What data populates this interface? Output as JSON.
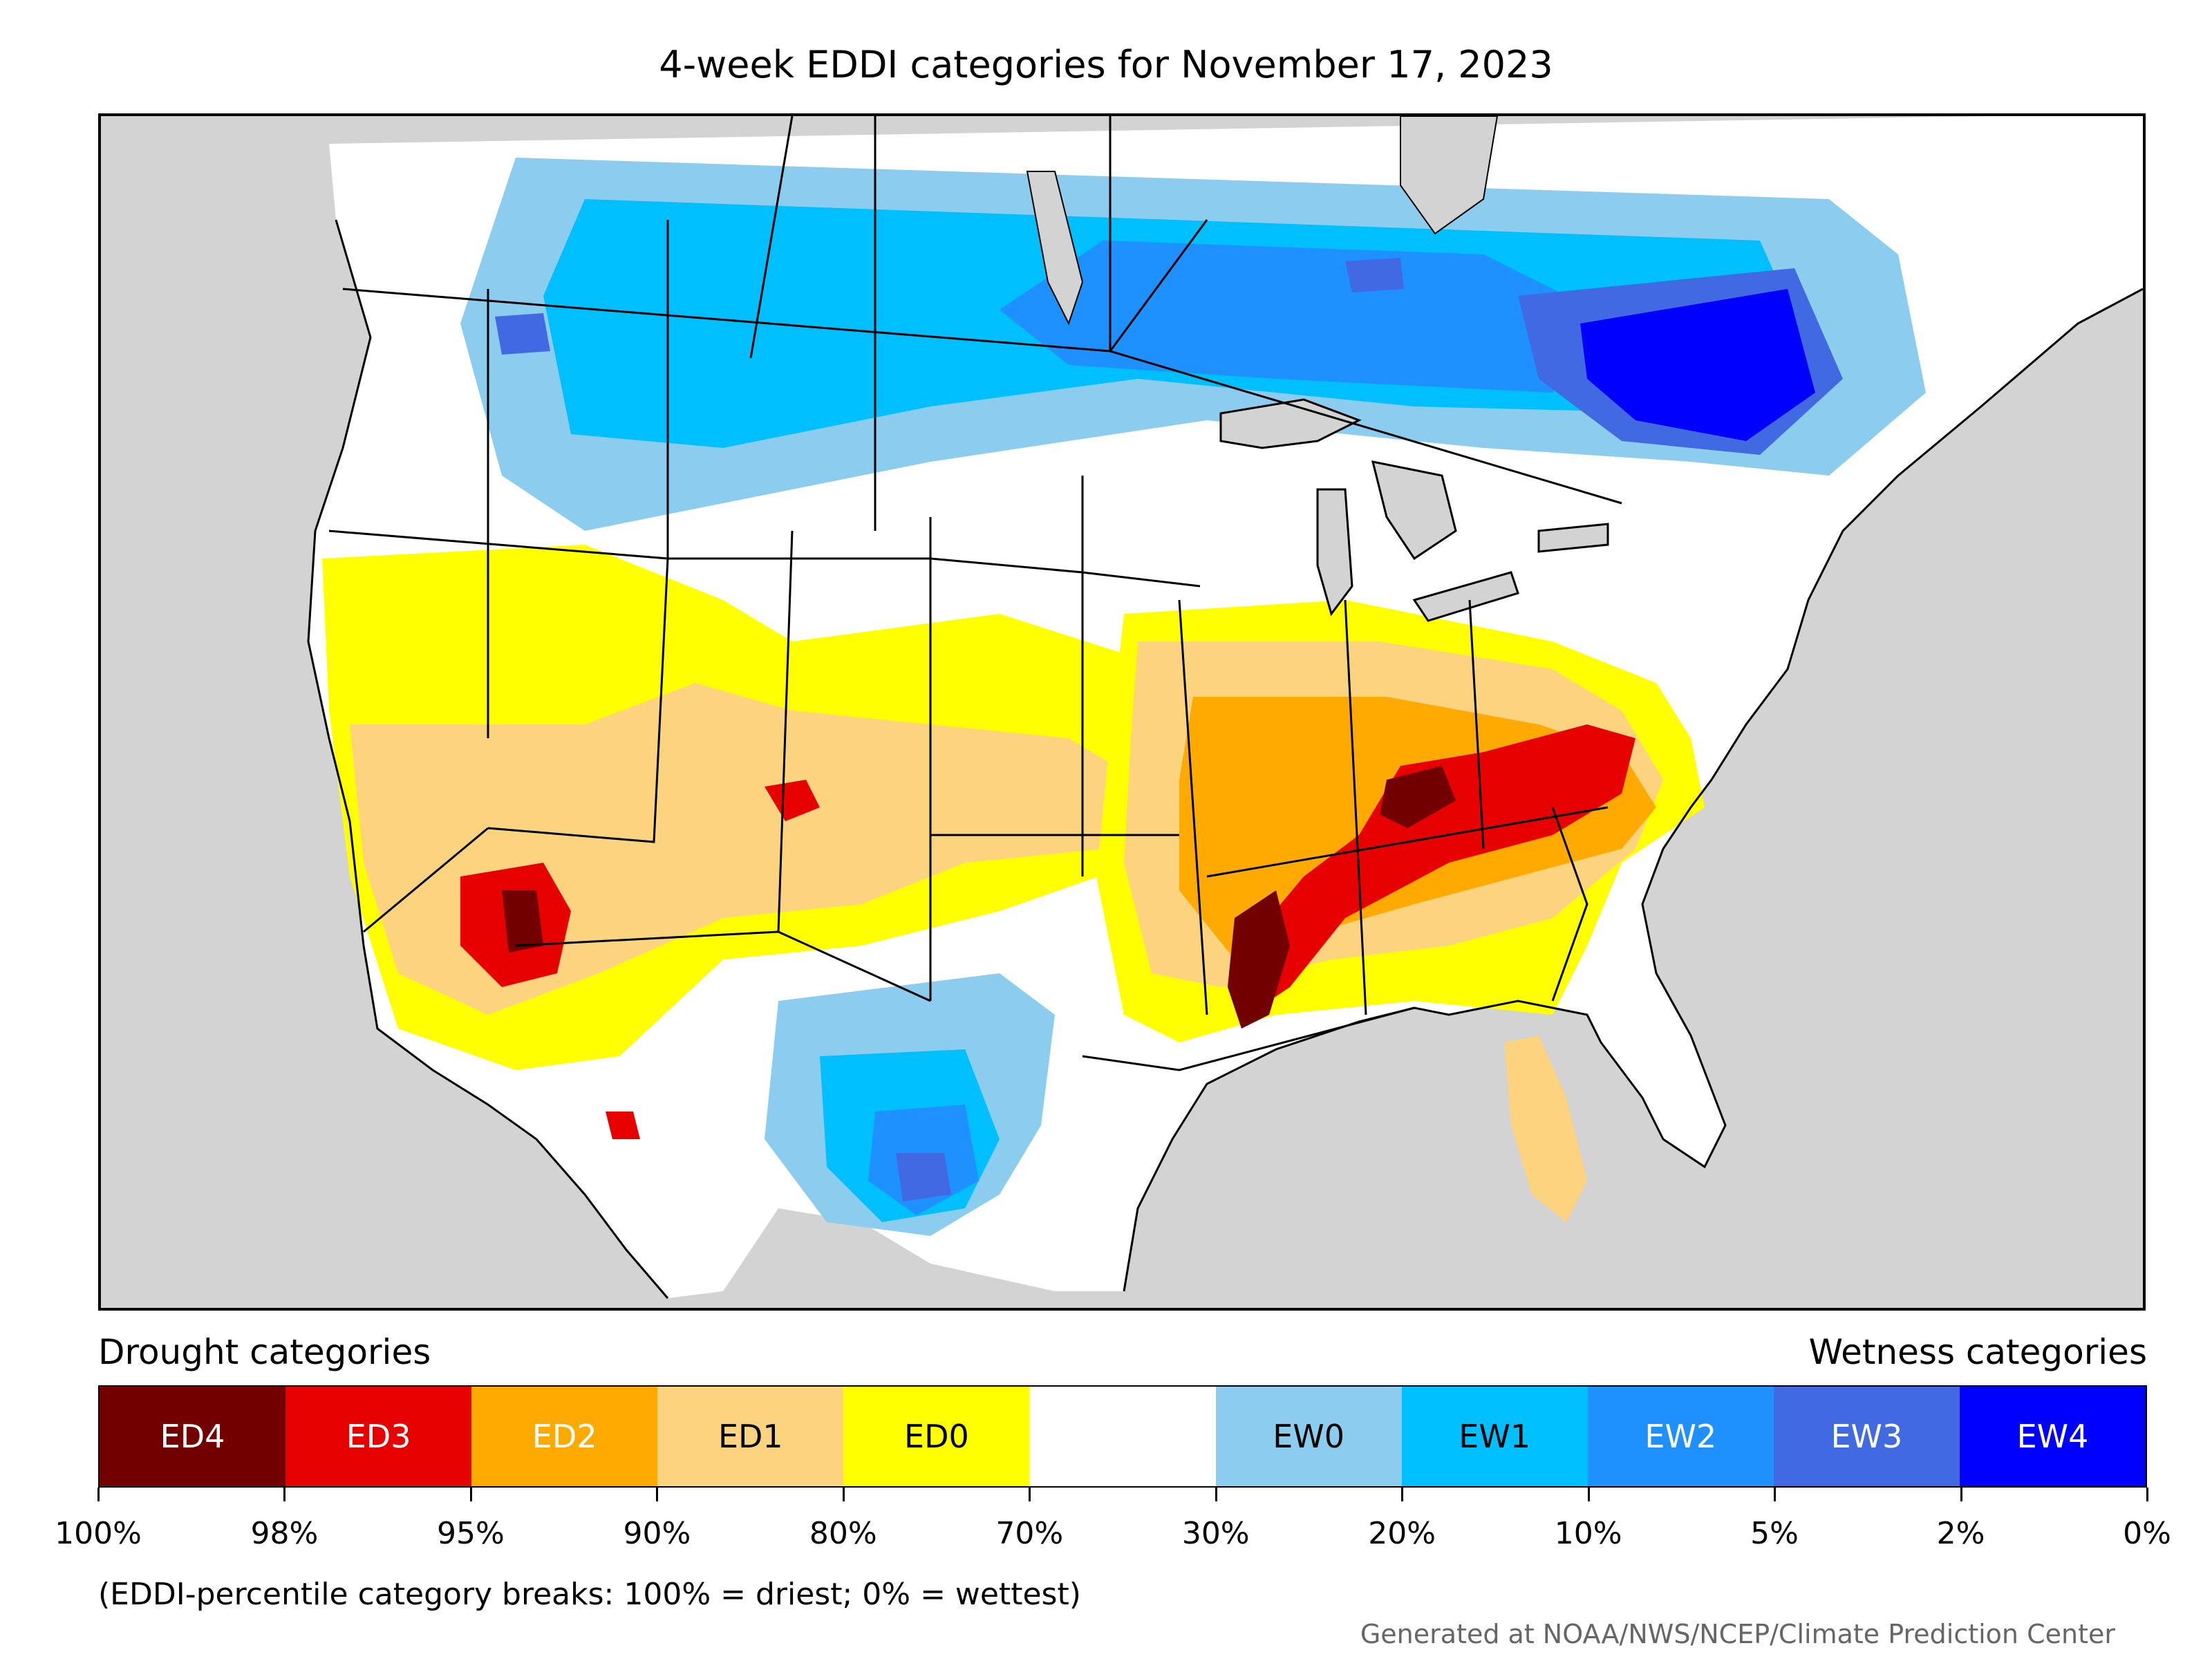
{
  "title": "4-week EDDI categories for November 17, 2023",
  "map": {
    "background_color": "#d3d3d3",
    "region": "Contiguous United States with parts of Canada and Mexico",
    "patches": [
      {
        "category": "EW1",
        "region": "northern plains / southern Canada"
      },
      {
        "category": "EW4",
        "region": "Quebec / northern New England"
      },
      {
        "category": "EW2",
        "region": "southern Texas"
      },
      {
        "category": "ED4",
        "region": "lower Mississippi valley"
      },
      {
        "category": "ED3",
        "region": "southern California / Arizona border"
      },
      {
        "category": "ED2",
        "region": "Ohio valley / Southeast"
      },
      {
        "category": "ED1",
        "region": "southwest / central plains"
      },
      {
        "category": "ED0",
        "region": "Intermountain west / Gulf coast"
      }
    ]
  },
  "legend": {
    "drought_heading": "Drought categories",
    "wetness_heading": "Wetness categories",
    "categories": [
      {
        "label": "ED4",
        "color": "#730000",
        "text_color": "#ffffff"
      },
      {
        "label": "ED3",
        "color": "#e60000",
        "text_color": "#ffffff"
      },
      {
        "label": "ED2",
        "color": "#ffaa00",
        "text_color": "#ffffff"
      },
      {
        "label": "ED1",
        "color": "#fcd37f",
        "text_color": "#000000"
      },
      {
        "label": "ED0",
        "color": "#ffff00",
        "text_color": "#000000"
      },
      {
        "label": "",
        "color": "#ffffff",
        "text_color": "#000000"
      },
      {
        "label": "EW0",
        "color": "#8ccdef",
        "text_color": "#000000"
      },
      {
        "label": "EW1",
        "color": "#00bfff",
        "text_color": "#000000"
      },
      {
        "label": "EW2",
        "color": "#1e90ff",
        "text_color": "#ffffff"
      },
      {
        "label": "EW3",
        "color": "#4169e1",
        "text_color": "#ffffff"
      },
      {
        "label": "EW4",
        "color": "#0000ff",
        "text_color": "#ffffff"
      }
    ],
    "tick_labels": [
      "100%",
      "98%",
      "95%",
      "90%",
      "80%",
      "70%",
      "30%",
      "20%",
      "10%",
      "5%",
      "2%",
      "0%"
    ]
  },
  "note": "(EDDI-percentile category breaks: 100% = driest; 0% = wettest)",
  "credit": "Generated at NOAA/NWS/NCEP/Climate Prediction Center"
}
